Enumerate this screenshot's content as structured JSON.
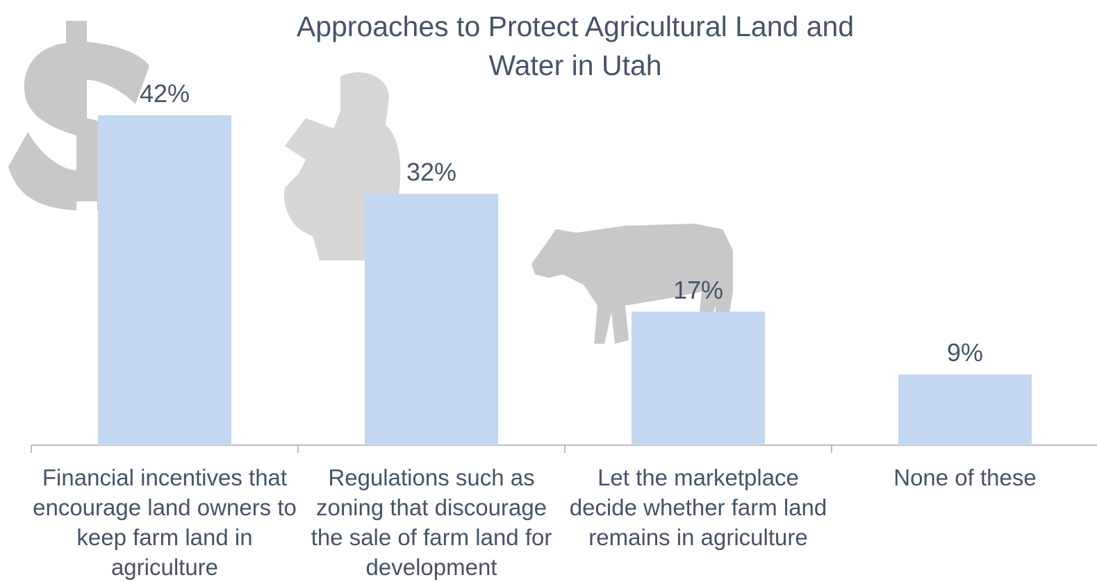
{
  "chart_data": {
    "type": "bar",
    "title": "Approaches to Protect Agricultural Land and Water in Utah",
    "categories": [
      "Financial incentives that encourage land owners to keep farm land in agriculture",
      "Regulations such as zoning that discourage the sale of farm land for development",
      "Let the marketplace decide whether farm land remains in agriculture",
      "None of these"
    ],
    "values": [
      42,
      32,
      17,
      9
    ],
    "value_labels": [
      "42%",
      "32%",
      "17%",
      "9%"
    ],
    "color": "#c3d7f0"
  }
}
